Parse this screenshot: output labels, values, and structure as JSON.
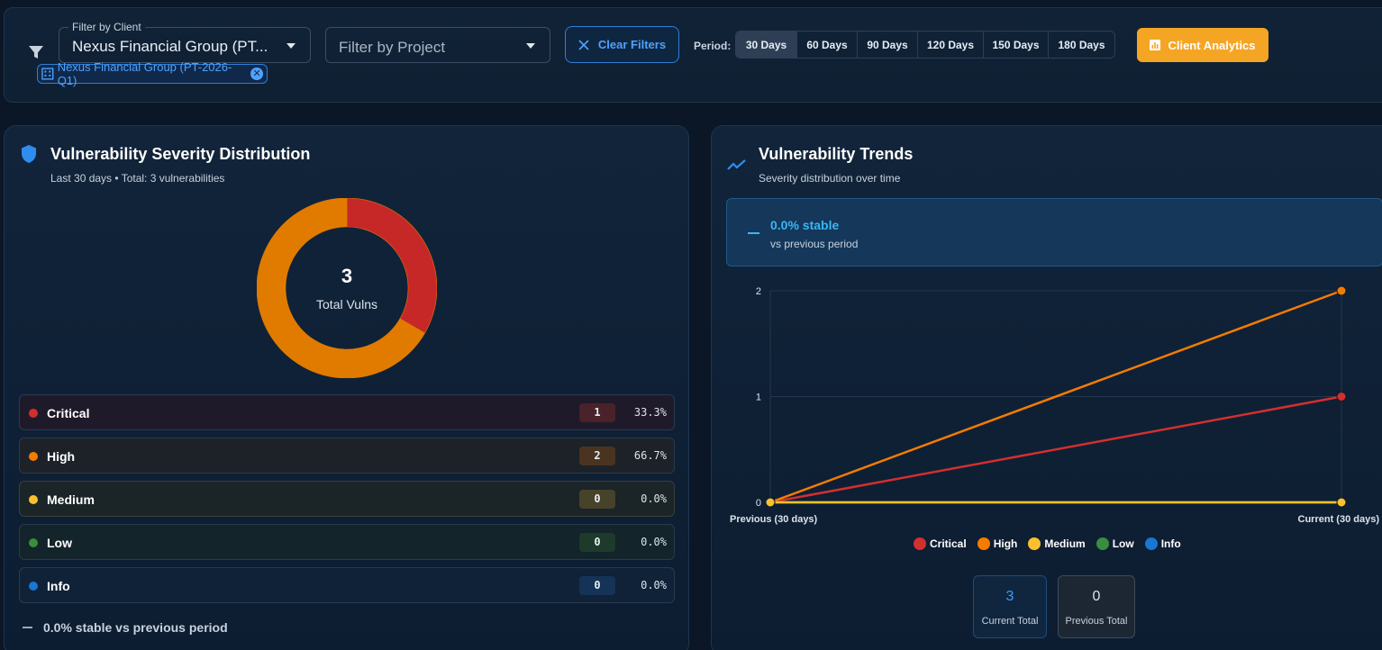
{
  "filters": {
    "client_label": "Filter by Client",
    "client_value": "Nexus Financial Group (PT...",
    "project_placeholder": "Filter by Project",
    "chip_label": "Nexus Financial Group (PT-2026-Q1)",
    "clear_label": "Clear Filters",
    "period_label": "Period:",
    "periods": [
      "30 Days",
      "60 Days",
      "90 Days",
      "120 Days",
      "150 Days",
      "180 Days"
    ],
    "active_period": "30 Days",
    "analytics_label": "Client Analytics"
  },
  "severity_panel": {
    "title": "Vulnerability Severity Distribution",
    "subtitle": "Last 30 days • Total: 3 vulnerabilities",
    "center_value": "3",
    "center_label": "Total Vulns",
    "rows": [
      {
        "name": "Critical",
        "count": "1",
        "pct": "33.3%",
        "color": "#d32f2f"
      },
      {
        "name": "High",
        "count": "2",
        "pct": "66.7%",
        "color": "#f57c00"
      },
      {
        "name": "Medium",
        "count": "0",
        "pct": "0.0%",
        "color": "#fbc02d"
      },
      {
        "name": "Low",
        "count": "0",
        "pct": "0.0%",
        "color": "#388e3c"
      },
      {
        "name": "Info",
        "count": "0",
        "pct": "0.0%",
        "color": "#1976d2"
      }
    ],
    "footer": "0.0% stable vs previous period"
  },
  "trends_panel": {
    "title": "Vulnerability Trends",
    "subtitle": "Severity distribution over time",
    "stable_headline": "0.0% stable",
    "stable_sub": "vs previous period",
    "current_total": "3",
    "current_total_label": "Current Total",
    "previous_total": "0",
    "previous_total_label": "Previous Total"
  },
  "chart_data": {
    "type": "line",
    "x": [
      "Previous (30 days)",
      "Current (30 days)"
    ],
    "ylim": [
      0,
      2
    ],
    "yticks": [
      0,
      1,
      2
    ],
    "series": [
      {
        "name": "Critical",
        "values": [
          0,
          1
        ],
        "color": "#d32f2f"
      },
      {
        "name": "High",
        "values": [
          0,
          2
        ],
        "color": "#f57c00"
      },
      {
        "name": "Medium",
        "values": [
          0,
          0
        ],
        "color": "#fbc02d"
      },
      {
        "name": "Low",
        "values": [
          0,
          0
        ],
        "color": "#388e3c"
      },
      {
        "name": "Info",
        "values": [
          0,
          0
        ],
        "color": "#1976d2"
      }
    ],
    "legend": "bottom",
    "grid": true
  },
  "donut_data": {
    "type": "pie",
    "categories": [
      "Critical",
      "High"
    ],
    "values": [
      1,
      2
    ],
    "colors": [
      "#c62828",
      "#e07b00"
    ]
  }
}
